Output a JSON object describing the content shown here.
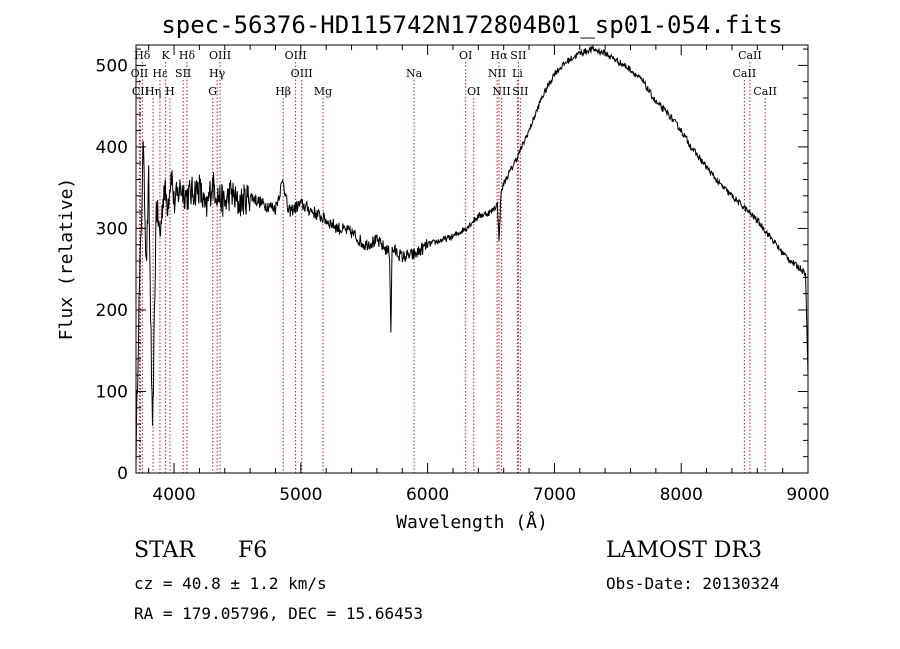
{
  "chart_data": {
    "type": "line",
    "title": "spec-56376-HD115742N172804B01_sp01-054.fits",
    "xlabel": "Wavelength (Å)",
    "ylabel": "Flux (relative)",
    "xlim": [
      3700,
      9000
    ],
    "ylim": [
      0,
      525
    ],
    "x_ticks": [
      4000,
      5000,
      6000,
      7000,
      8000,
      9000
    ],
    "y_ticks": [
      0,
      100,
      200,
      300,
      400,
      500
    ],
    "series": [
      {
        "name": "spectrum",
        "x": [
          3700,
          3720,
          3740,
          3760,
          3780,
          3800,
          3830,
          3860,
          3890,
          3920,
          3950,
          3980,
          4000,
          4050,
          4100,
          4150,
          4200,
          4250,
          4300,
          4350,
          4400,
          4450,
          4500,
          4600,
          4700,
          4800,
          4861,
          4900,
          5000,
          5100,
          5200,
          5300,
          5400,
          5500,
          5600,
          5700,
          5710,
          5720,
          5800,
          5900,
          6000,
          6100,
          6200,
          6300,
          6400,
          6500,
          6550,
          6563,
          6580,
          6600,
          6700,
          6800,
          6900,
          7000,
          7100,
          7200,
          7300,
          7400,
          7500,
          7600,
          7700,
          7800,
          7900,
          8000,
          8100,
          8200,
          8300,
          8400,
          8500,
          8600,
          8700,
          8800,
          8900,
          8950,
          8980,
          9000
        ],
        "y": [
          20,
          180,
          300,
          410,
          250,
          360,
          40,
          330,
          290,
          350,
          330,
          370,
          330,
          350,
          340,
          345,
          350,
          320,
          355,
          340,
          330,
          345,
          330,
          340,
          330,
          325,
          360,
          320,
          330,
          320,
          310,
          300,
          295,
          280,
          285,
          270,
          175,
          275,
          265,
          268,
          280,
          285,
          290,
          300,
          315,
          320,
          330,
          285,
          345,
          355,
          385,
          420,
          460,
          490,
          505,
          515,
          520,
          515,
          505,
          495,
          480,
          455,
          440,
          420,
          395,
          375,
          355,
          340,
          325,
          310,
          290,
          270,
          255,
          250,
          245,
          120
        ]
      }
    ],
    "lines": [
      {
        "label": "Hδ",
        "wavelength": 3750,
        "row": 1
      },
      {
        "label": "OII",
        "wavelength": 3727,
        "row": 2
      },
      {
        "label": "CII",
        "wavelength": 3735,
        "row": 3
      },
      {
        "label": "Hε",
        "wavelength": 3889,
        "row": 2
      },
      {
        "label": "Hη",
        "wavelength": 3835,
        "row": 3
      },
      {
        "label": "K",
        "wavelength": 3934,
        "row": 1
      },
      {
        "label": "SII",
        "wavelength": 4072,
        "row": 2
      },
      {
        "label": "H",
        "wavelength": 3968,
        "row": 3
      },
      {
        "label": "Hδ",
        "wavelength": 4102,
        "row": 1
      },
      {
        "label": "OIII",
        "wavelength": 4363,
        "row": 1
      },
      {
        "label": "Hγ",
        "wavelength": 4340,
        "row": 2
      },
      {
        "label": "G",
        "wavelength": 4305,
        "row": 3
      },
      {
        "label": "OIII",
        "wavelength": 4959,
        "row": 1
      },
      {
        "label": "OIII",
        "wavelength": 5007,
        "row": 2
      },
      {
        "label": "Hβ",
        "wavelength": 4861,
        "row": 3
      },
      {
        "label": "Mg",
        "wavelength": 5175,
        "row": 3
      },
      {
        "label": "Na",
        "wavelength": 5893,
        "row": 2
      },
      {
        "label": "OI",
        "wavelength": 6300,
        "row": 1
      },
      {
        "label": "OI",
        "wavelength": 6364,
        "row": 3
      },
      {
        "label": "Hα",
        "wavelength": 6563,
        "row": 1
      },
      {
        "label": "NII",
        "wavelength": 6548,
        "row": 2
      },
      {
        "label": "NII",
        "wavelength": 6583,
        "row": 3
      },
      {
        "label": "SII",
        "wavelength": 6716,
        "row": 1
      },
      {
        "label": "Li",
        "wavelength": 6708,
        "row": 2
      },
      {
        "label": "SII",
        "wavelength": 6731,
        "row": 3
      },
      {
        "label": "CaII",
        "wavelength": 8542,
        "row": 1
      },
      {
        "label": "CaII",
        "wavelength": 8498,
        "row": 2
      },
      {
        "label": "CaII",
        "wavelength": 8662,
        "row": 3
      }
    ]
  },
  "info": {
    "object_type": "STAR",
    "subclass": "F6",
    "survey": "LAMOST DR3",
    "cz": "cz = 40.8 ± 1.2 km/s",
    "obs_date": "Obs-Date: 20130324",
    "coords": "RA = 179.05796, DEC =  15.66453"
  },
  "colors": {
    "spectrum": "#000000",
    "line_markers": "#b22222",
    "axes": "#000000"
  }
}
